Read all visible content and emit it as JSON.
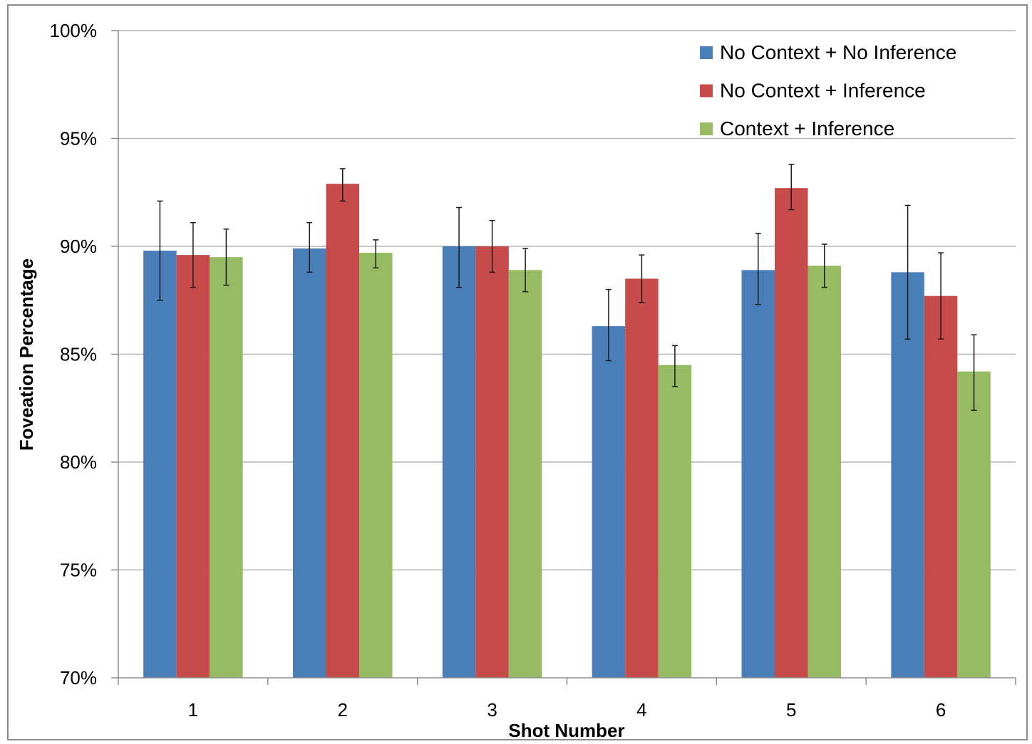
{
  "chart_data": {
    "type": "bar",
    "title": "",
    "xlabel": "Shot Number",
    "ylabel": "Foveation Percentage",
    "ylim": [
      70,
      100
    ],
    "yticks": [
      70,
      75,
      80,
      85,
      90,
      95,
      100
    ],
    "ytick_labels": [
      "70%",
      "75%",
      "80%",
      "85%",
      "90%",
      "95%",
      "100%"
    ],
    "categories": [
      "1",
      "2",
      "3",
      "4",
      "5",
      "6"
    ],
    "grid": "horizontal",
    "legend_position": "top-right",
    "series": [
      {
        "name": "No Context + No Inference",
        "color": "#4a7eb8",
        "values": [
          89.8,
          89.9,
          90.0,
          86.3,
          88.9,
          88.8
        ],
        "err_low": [
          87.5,
          88.8,
          88.1,
          84.7,
          87.3,
          85.7
        ],
        "err_high": [
          92.1,
          91.1,
          91.8,
          88.0,
          90.6,
          91.9
        ]
      },
      {
        "name": "No Context + Inference",
        "color": "#c84b4b",
        "values": [
          89.6,
          92.9,
          90.0,
          88.5,
          92.7,
          87.7
        ],
        "err_low": [
          88.1,
          92.1,
          88.8,
          87.4,
          91.7,
          85.7
        ],
        "err_high": [
          91.1,
          93.6,
          91.2,
          89.6,
          93.8,
          89.7
        ]
      },
      {
        "name": "Context + Inference",
        "color": "#96bb63",
        "values": [
          89.5,
          89.7,
          88.9,
          84.5,
          89.1,
          84.2
        ],
        "err_low": [
          88.2,
          89.0,
          87.9,
          83.5,
          88.1,
          82.4
        ],
        "err_high": [
          90.8,
          90.3,
          89.9,
          85.4,
          90.1,
          85.9
        ]
      }
    ]
  }
}
